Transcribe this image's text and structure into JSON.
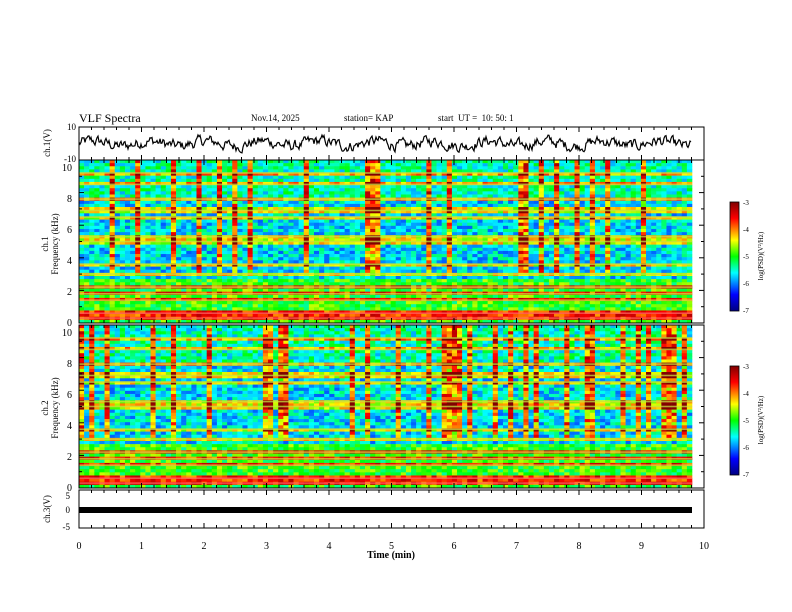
{
  "header": {
    "title": "VLF Spectra",
    "date": "Nov.14, 2025",
    "station": "station= KAP",
    "start": "start  UT =  10: 50: 1"
  },
  "chart_data": [
    {
      "type": "line",
      "panel": "ch1-waveform",
      "ylabel": "ch.1(V)",
      "ylim": [
        -10,
        10
      ],
      "yticks": [
        "10",
        "-10"
      ],
      "xlim": [
        0,
        9.8
      ],
      "description_amplitude": "noise-like waveform oscillating roughly between -5 and 5 V"
    },
    {
      "type": "heatmap",
      "panel": "ch1-spectrogram",
      "ylabel": "ch.1",
      "ylabel2": "Frequency (kHz)",
      "ylim": [
        0,
        10
      ],
      "yticks": [
        "0",
        "2",
        "4",
        "6",
        "8",
        "10"
      ],
      "xlim": [
        0,
        9.8
      ],
      "colorbar": {
        "label": "log(PSD)(V²/Hz)",
        "range": [
          -7,
          -3
        ],
        "ticks": [
          "-3",
          "-4",
          "-5",
          "-6",
          "-7"
        ]
      },
      "bands_khz": [
        0.3,
        0.6,
        1.4,
        1.8,
        2.2,
        3.0,
        3.6,
        5.0,
        5.3,
        6.5,
        6.9,
        7.6,
        8.5,
        9.2
      ]
    },
    {
      "type": "heatmap",
      "panel": "ch2-spectrogram",
      "ylabel": "ch.2",
      "ylabel2": "Frequency (kHz)",
      "ylim": [
        0,
        10
      ],
      "yticks": [
        "0",
        "2",
        "4",
        "6",
        "8",
        "10"
      ],
      "xlim": [
        0,
        9.8
      ],
      "colorbar": {
        "label": "log(PSD)(V²/Hz)",
        "range": [
          -7,
          -3
        ],
        "ticks": [
          "-3",
          "-4",
          "-5",
          "-6",
          "-7"
        ]
      },
      "bands_khz": [
        0.3,
        0.6,
        1.4,
        1.8,
        2.2,
        3.0,
        3.6,
        5.0,
        5.3,
        6.5,
        6.9,
        7.6,
        8.5,
        9.2
      ]
    },
    {
      "type": "line",
      "panel": "ch3-waveform",
      "ylabel": "ch.3(V)",
      "ylim": [
        -5,
        5
      ],
      "yticks": [
        "5",
        "0",
        "-5"
      ],
      "xlim": [
        0,
        9.8
      ],
      "constant_value": 0
    }
  ],
  "xaxis": {
    "label": "Time (min)",
    "range": [
      0,
      10
    ],
    "ticks": [
      "0",
      "1",
      "2",
      "3",
      "4",
      "5",
      "6",
      "7",
      "8",
      "9",
      "10"
    ]
  }
}
